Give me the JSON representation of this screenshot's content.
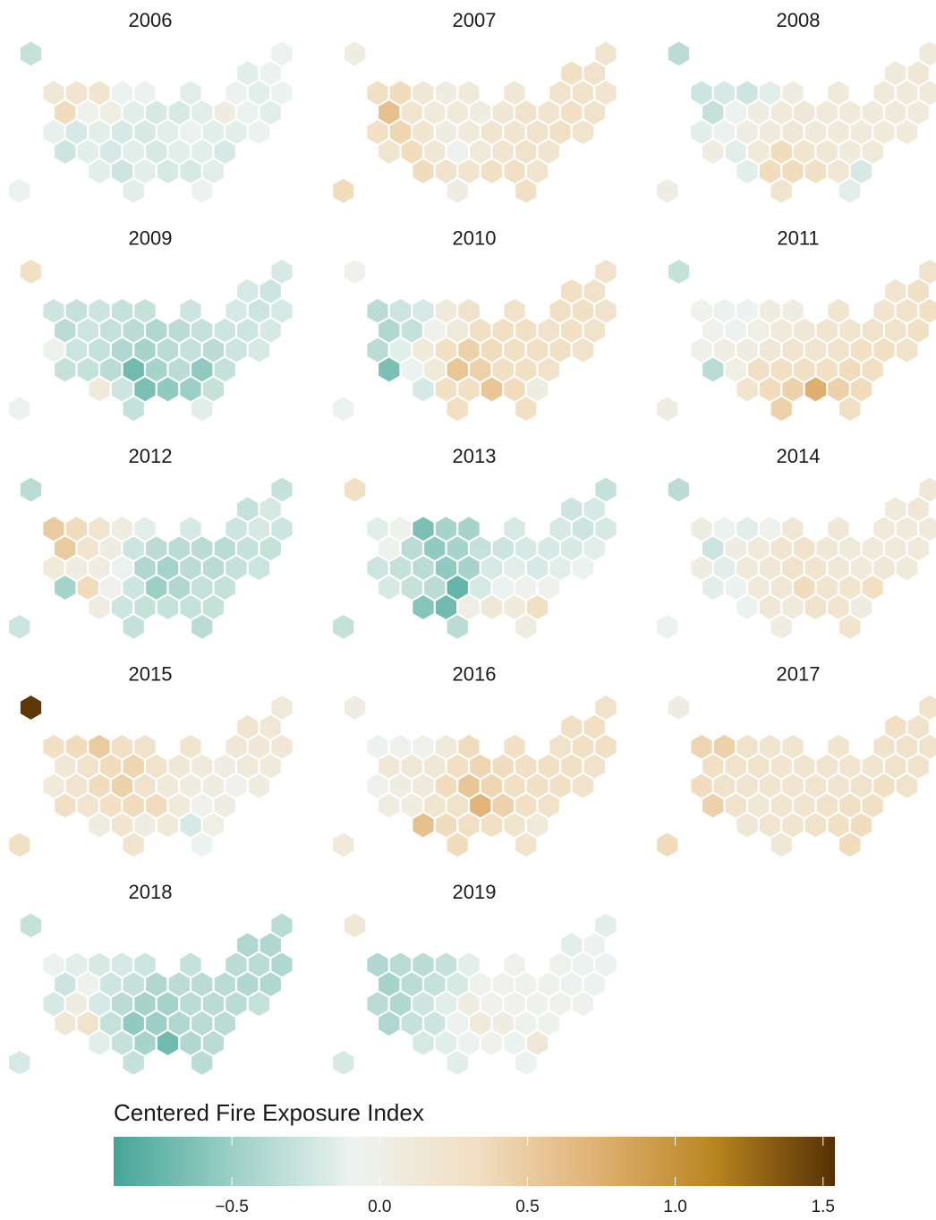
{
  "chart_data": [
    {
      "type": "hexmap",
      "title": "2006",
      "values": [
        -0.3,
        -0.1,
        -0.15,
        -0.1,
        0.15,
        0.2,
        0.2,
        -0.1,
        -0.1,
        -0.15,
        -0.1,
        -0.15,
        -0.1,
        0.35,
        -0.05,
        0.02,
        -0.15,
        -0.2,
        -0.2,
        -0.15,
        0.03,
        -0.1,
        -0.15,
        -0.12,
        -0.2,
        -0.15,
        -0.2,
        -0.2,
        -0.15,
        -0.1,
        -0.15,
        -0.15,
        -0.1,
        -0.25,
        -0.15,
        -0.2,
        -0.15,
        -0.2,
        -0.15,
        -0.15,
        -0.2,
        -0.15,
        -0.25,
        -0.15,
        -0.2,
        -0.2,
        -0.15,
        -0.1,
        -0.15,
        -0.1
      ]
    },
    {
      "type": "hexmap",
      "title": "2007",
      "values": [
        0.05,
        0.2,
        0.3,
        0.25,
        0.3,
        0.35,
        0.15,
        0.05,
        0.1,
        0.15,
        0.25,
        0.25,
        0.2,
        0.6,
        0.2,
        0.1,
        0.1,
        0.05,
        0.15,
        0.25,
        0.2,
        0.3,
        0.25,
        0.3,
        0.4,
        0.2,
        0.05,
        0.1,
        0.2,
        0.2,
        0.25,
        0.3,
        0.2,
        0.2,
        0.35,
        0.15,
        -0.05,
        0.1,
        0.2,
        0.25,
        0.2,
        0.35,
        0.25,
        0.2,
        0.3,
        0.3,
        0.2,
        0.35,
        0.05,
        0.3
      ]
    },
    {
      "type": "hexmap",
      "title": "2008",
      "values": [
        -0.35,
        0.1,
        0.1,
        0.15,
        -0.25,
        -0.2,
        -0.25,
        -0.15,
        0.05,
        0.1,
        0.1,
        0.1,
        0.1,
        -0.3,
        -0.1,
        0.05,
        0.1,
        0.15,
        0.1,
        0.1,
        0.1,
        0.1,
        0.1,
        -0.15,
        -0.1,
        0.05,
        0.1,
        0.15,
        0.1,
        0.1,
        0.1,
        0.1,
        0.1,
        0.05,
        -0.15,
        0.1,
        0.35,
        0.2,
        0.15,
        0.1,
        0.1,
        -0.15,
        0.35,
        0.35,
        0.3,
        0.15,
        -0.2,
        0.03,
        0.2,
        -0.15
      ]
    },
    {
      "type": "hexmap",
      "title": "2009",
      "values": [
        0.3,
        -0.2,
        -0.2,
        -0.25,
        -0.25,
        -0.3,
        -0.25,
        -0.3,
        -0.3,
        -0.25,
        -0.2,
        -0.25,
        -0.2,
        -0.35,
        -0.25,
        -0.3,
        -0.35,
        -0.4,
        -0.35,
        -0.3,
        -0.25,
        -0.25,
        -0.2,
        -0.05,
        -0.25,
        -0.3,
        -0.4,
        -0.45,
        -0.35,
        -0.3,
        -0.35,
        -0.25,
        -0.2,
        -0.3,
        -0.3,
        -0.35,
        -0.7,
        -0.45,
        -0.35,
        -0.55,
        -0.3,
        0.1,
        -0.25,
        -0.65,
        -0.55,
        -0.5,
        -0.3,
        -0.1,
        -0.3,
        -0.15
      ]
    },
    {
      "type": "hexmap",
      "title": "2010",
      "values": [
        -0.05,
        0.25,
        0.3,
        0.25,
        -0.35,
        -0.25,
        -0.2,
        0.1,
        0.25,
        0.25,
        0.3,
        0.3,
        0.25,
        -0.4,
        -0.3,
        -0.05,
        0.1,
        0.3,
        0.3,
        0.3,
        0.25,
        0.3,
        0.25,
        -0.35,
        -0.15,
        0.1,
        0.3,
        0.45,
        0.35,
        0.3,
        0.3,
        0.3,
        0.25,
        -0.65,
        -0.1,
        0.1,
        0.55,
        0.45,
        0.3,
        0.3,
        0.25,
        -0.2,
        0.3,
        0.3,
        0.55,
        0.35,
        0.05,
        -0.1,
        0.3,
        0.3
      ]
    },
    {
      "type": "hexmap",
      "title": "2011",
      "values": [
        -0.3,
        0.25,
        0.2,
        0.3,
        -0.05,
        -0.1,
        -0.1,
        0.05,
        0.05,
        0.2,
        0.2,
        0.25,
        0.3,
        -0.05,
        -0.1,
        0,
        0.1,
        0.15,
        0.2,
        0.2,
        0.25,
        0.25,
        0.3,
        -0.03,
        0.02,
        0.05,
        0.15,
        0.2,
        0.2,
        0.25,
        0.3,
        0.3,
        0.25,
        -0.35,
        0,
        0.3,
        0.3,
        0.3,
        0.3,
        0.35,
        0.3,
        0.2,
        0.35,
        0.45,
        0.75,
        0.45,
        0.35,
        0.05,
        0.45,
        0.3
      ]
    },
    {
      "type": "hexmap",
      "title": "2012",
      "values": [
        -0.35,
        -0.3,
        -0.3,
        -0.2,
        0.5,
        0.35,
        0.2,
        0.05,
        -0.15,
        -0.2,
        -0.25,
        -0.2,
        -0.25,
        0.5,
        0.2,
        0.05,
        -0.25,
        -0.35,
        -0.35,
        -0.35,
        -0.35,
        -0.3,
        -0.3,
        0.1,
        0.05,
        0.05,
        -0.1,
        -0.4,
        -0.45,
        -0.35,
        -0.35,
        -0.3,
        -0.25,
        -0.45,
        0.35,
        -0.05,
        -0.25,
        -0.5,
        -0.4,
        -0.3,
        -0.3,
        0.05,
        -0.25,
        -0.3,
        -0.3,
        -0.3,
        -0.3,
        -0.25,
        -0.3,
        -0.35
      ]
    },
    {
      "type": "hexmap",
      "title": "2013",
      "values": [
        0.3,
        -0.3,
        -0.25,
        -0.2,
        -0.15,
        -0.05,
        -0.65,
        -0.45,
        -0.45,
        -0.2,
        -0.2,
        -0.25,
        -0.2,
        -0.05,
        -0.35,
        -0.55,
        -0.45,
        -0.3,
        -0.25,
        -0.2,
        -0.2,
        -0.2,
        -0.15,
        -0.25,
        -0.3,
        -0.35,
        -0.55,
        -0.45,
        -0.2,
        -0.15,
        -0.2,
        -0.15,
        -0.1,
        -0.2,
        -0.3,
        -0.35,
        -0.75,
        -0.2,
        -0.1,
        -0.05,
        -0.05,
        -0.6,
        -0.7,
        0.02,
        0.15,
        0.1,
        0.3,
        -0.3,
        -0.35,
        0.05
      ]
    },
    {
      "type": "hexmap",
      "title": "2014",
      "values": [
        -0.35,
        0.15,
        0.1,
        0.15,
        0.05,
        -0.1,
        -0.15,
        -0.05,
        0.15,
        0.15,
        0.1,
        0.1,
        0.1,
        -0.25,
        0.05,
        0.1,
        0.2,
        0.25,
        0.15,
        0.1,
        0.1,
        0.1,
        0.1,
        0.05,
        -0.15,
        0.1,
        0.15,
        0.25,
        0.2,
        0.15,
        0.1,
        0.15,
        0.1,
        -0.15,
        -0.1,
        0.1,
        0.15,
        0.35,
        0.2,
        0.2,
        0.3,
        -0.1,
        0.15,
        0.1,
        0.25,
        0.2,
        0.05,
        -0.1,
        0.05,
        0.2
      ]
    },
    {
      "type": "hexmap",
      "title": "2015",
      "values": [
        1.5,
        0.1,
        0.2,
        0.15,
        0.3,
        0.35,
        0.5,
        0.3,
        0.25,
        0.2,
        0.15,
        0.15,
        0.15,
        0.15,
        0.25,
        0.35,
        0.4,
        0.25,
        0.15,
        0.1,
        0.05,
        0.1,
        0.1,
        0.1,
        0.2,
        0.35,
        0.45,
        0.25,
        0.1,
        0.05,
        0.05,
        -0.05,
        0.05,
        0.3,
        0.2,
        0.3,
        0.35,
        0.35,
        0.1,
        -0.05,
        0.05,
        0.05,
        0.2,
        0.05,
        0.1,
        -0.2,
        0,
        0.3,
        0.2,
        -0.1
      ]
    },
    {
      "type": "hexmap",
      "title": "2016",
      "values": [
        0.03,
        0.25,
        0.3,
        0.3,
        -0.1,
        -0.05,
        -0.05,
        0.1,
        0.35,
        0.3,
        0.25,
        0.3,
        0.3,
        0.15,
        0.15,
        0.15,
        0.3,
        0.4,
        0.35,
        0.3,
        0.3,
        0.3,
        0.25,
        -0.05,
        0.05,
        0.1,
        0.35,
        0.55,
        0.4,
        0.3,
        0.3,
        0.3,
        0.25,
        0.05,
        0.05,
        0.2,
        0.25,
        0.7,
        0.45,
        0.3,
        0.25,
        0.6,
        0.35,
        0.3,
        0.3,
        0.2,
        0.1,
        0.1,
        0.35,
        0.2
      ]
    },
    {
      "type": "hexmap",
      "title": "2017",
      "values": [
        0.03,
        0.25,
        0.3,
        0.25,
        0.4,
        0.45,
        0.25,
        0.2,
        0.2,
        0.2,
        0.25,
        0.25,
        0.25,
        0.3,
        0.25,
        0.25,
        0.2,
        0.2,
        0.2,
        0.2,
        0.2,
        0.25,
        0.25,
        0.35,
        0.25,
        0.2,
        0.2,
        0.2,
        0.2,
        0.2,
        0.25,
        0.3,
        0.25,
        0.45,
        0.25,
        0.15,
        0.2,
        0.2,
        0.25,
        0.3,
        0.3,
        0.15,
        0.2,
        0.2,
        0.25,
        0.3,
        0.35,
        0.35,
        0.15,
        0.35
      ]
    },
    {
      "type": "hexmap",
      "title": "2018",
      "values": [
        -0.3,
        -0.35,
        -0.4,
        -0.4,
        -0.1,
        -0.15,
        -0.2,
        -0.2,
        -0.25,
        -0.3,
        -0.35,
        -0.35,
        -0.4,
        -0.25,
        -0.05,
        -0.25,
        -0.3,
        -0.4,
        -0.35,
        -0.35,
        -0.35,
        -0.4,
        -0.4,
        -0.2,
        0.05,
        -0.2,
        -0.35,
        -0.45,
        -0.45,
        -0.35,
        -0.35,
        -0.35,
        -0.3,
        0.15,
        0.25,
        -0.3,
        -0.55,
        -0.5,
        -0.4,
        -0.35,
        -0.35,
        -0.15,
        -0.3,
        -0.45,
        -0.7,
        -0.4,
        -0.35,
        -0.2,
        -0.3,
        -0.35
      ]
    },
    {
      "type": "hexmap",
      "title": "2019",
      "values": [
        0.15,
        -0.15,
        -0.15,
        -0.1,
        -0.4,
        -0.35,
        -0.35,
        -0.3,
        -0.15,
        -0.05,
        -0.05,
        -0.1,
        -0.1,
        -0.45,
        -0.35,
        -0.3,
        -0.2,
        -0.05,
        -0.05,
        -0.05,
        -0.05,
        -0.1,
        -0.1,
        -0.35,
        -0.4,
        -0.25,
        -0.15,
        0.05,
        -0.05,
        -0.05,
        -0.05,
        -0.05,
        -0.05,
        -0.4,
        -0.3,
        -0.25,
        -0.1,
        0.1,
        0.05,
        -0.05,
        -0.05,
        -0.2,
        -0.15,
        -0.1,
        -0.05,
        -0.1,
        0.15,
        -0.2,
        -0.15,
        -0.1
      ]
    }
  ],
  "legend": {
    "title": "Centered Fire Exposure Index",
    "lim": [
      -0.9,
      1.54
    ],
    "ticks": [
      {
        "value": -0.5,
        "label": "−0.5"
      },
      {
        "value": 0,
        "label": "0.0"
      },
      0.5,
      {
        "value": 1,
        "label": "1.0"
      },
      1.5
    ],
    "colors": [
      "#45a597",
      "#9dd0c7",
      "#eef3f0",
      "#f2dfc3",
      "#e0b274",
      "#b98520",
      "#543005"
    ]
  }
}
